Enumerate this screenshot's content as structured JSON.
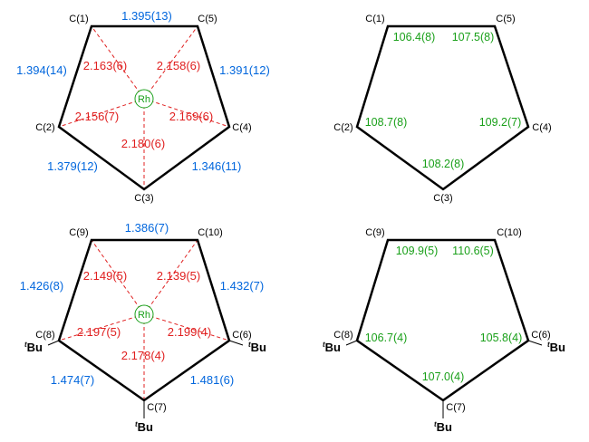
{
  "colors": {
    "ring": "#000000",
    "bond_length": "#0066dd",
    "rh_distance": "#e02020",
    "angle": "#1aa01a",
    "rh_circle": "#1aa01a"
  },
  "panels": [
    {
      "id": "top-left",
      "ring_atoms": [
        "C(1)",
        "C(5)",
        "C(4)",
        "C(3)",
        "C(2)"
      ],
      "bond_lengths": [
        {
          "label": "1.395(13)"
        },
        {
          "label": "1.391(12)"
        },
        {
          "label": "1.346(11)"
        },
        {
          "label": "1.379(12)"
        },
        {
          "label": "1.394(14)"
        }
      ],
      "metal": "Rh",
      "rh_distances": [
        "2.163(6)",
        "2.158(6)",
        "2.169(6)",
        "2.180(6)",
        "2.156(7)"
      ]
    },
    {
      "id": "top-right",
      "ring_atoms": [
        "C(1)",
        "C(5)",
        "C(4)",
        "C(3)",
        "C(2)"
      ],
      "angles": [
        "106.4(8)",
        "107.5(8)",
        "109.2(7)",
        "108.2(8)",
        "108.7(8)"
      ]
    },
    {
      "id": "bottom-left",
      "ring_atoms": [
        "C(9)",
        "C(10)",
        "C(6)",
        "C(7)",
        "C(8)"
      ],
      "bond_lengths": [
        {
          "label": "1.386(7)"
        },
        {
          "label": "1.432(7)"
        },
        {
          "label": "1.481(6)"
        },
        {
          "label": "1.474(7)"
        },
        {
          "label": "1.426(8)"
        }
      ],
      "metal": "Rh",
      "rh_distances": [
        "2.149(5)",
        "2.139(5)",
        "2.199(4)",
        "2.178(4)",
        "2.197(5)"
      ],
      "substituents": {
        "sup": "t",
        "label": "Bu"
      }
    },
    {
      "id": "bottom-right",
      "ring_atoms": [
        "C(9)",
        "C(10)",
        "C(6)",
        "C(7)",
        "C(8)"
      ],
      "angles": [
        "109.9(5)",
        "110.6(5)",
        "105.8(4)",
        "107.0(4)",
        "106.7(4)"
      ],
      "substituents": {
        "sup": "t",
        "label": "Bu"
      }
    }
  ]
}
